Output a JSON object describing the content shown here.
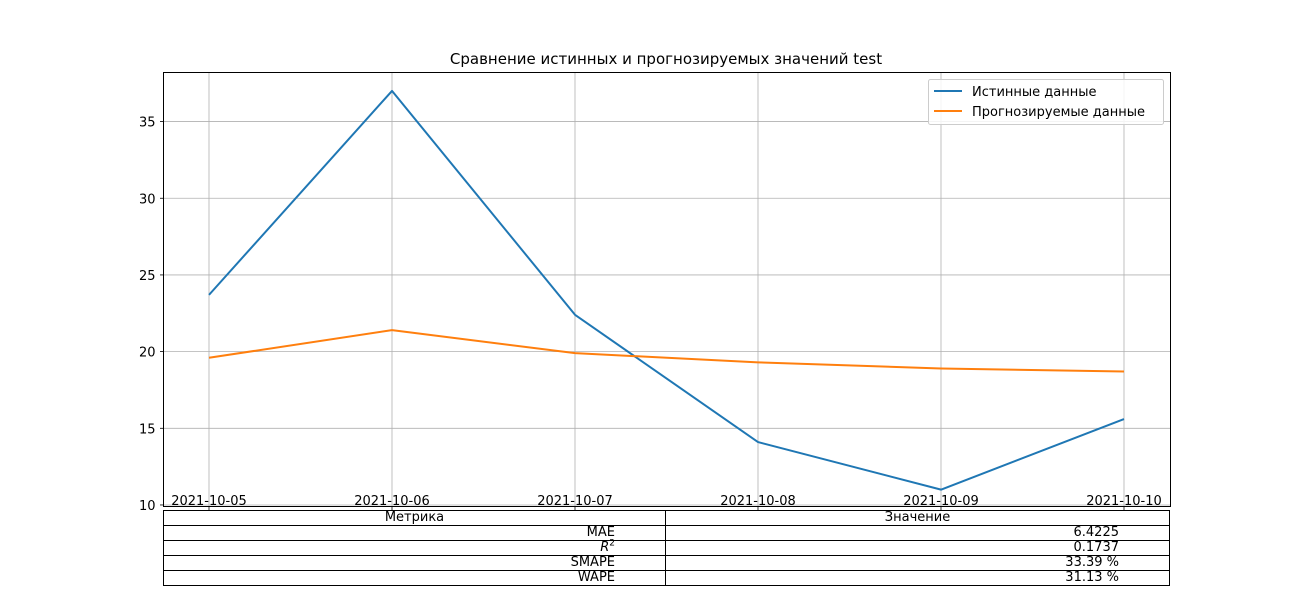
{
  "chart_data": {
    "type": "line",
    "title": "Сравнение истинных и прогнозируемых значений test",
    "x": [
      "2021-10-05",
      "2021-10-06",
      "2021-10-07",
      "2021-10-08",
      "2021-10-09",
      "2021-10-10"
    ],
    "series": [
      {
        "name": "Истинные данные",
        "color": "#1f77b4",
        "values": [
          23.7,
          37.0,
          22.4,
          14.1,
          11.0,
          15.6
        ]
      },
      {
        "name": "Прогнозируемые данные",
        "color": "#ff7f0e",
        "values": [
          19.6,
          21.4,
          19.9,
          19.3,
          18.9,
          18.7
        ]
      }
    ],
    "yticks": [
      10,
      15,
      20,
      25,
      30,
      35
    ],
    "ylim": [
      9.9,
      38.2
    ],
    "grid": true,
    "legend_position": "top-right"
  },
  "metrics_table": {
    "headers": [
      "Метрика",
      "Значение"
    ],
    "rows": [
      {
        "metric": "MAE",
        "value": "6.4225"
      },
      {
        "metric": "R",
        "metric_sup": "2",
        "value": "0.1737"
      },
      {
        "metric": "SMAPE",
        "value": "33.39 %"
      },
      {
        "metric": "WAPE",
        "value": "31.13 %"
      }
    ]
  }
}
